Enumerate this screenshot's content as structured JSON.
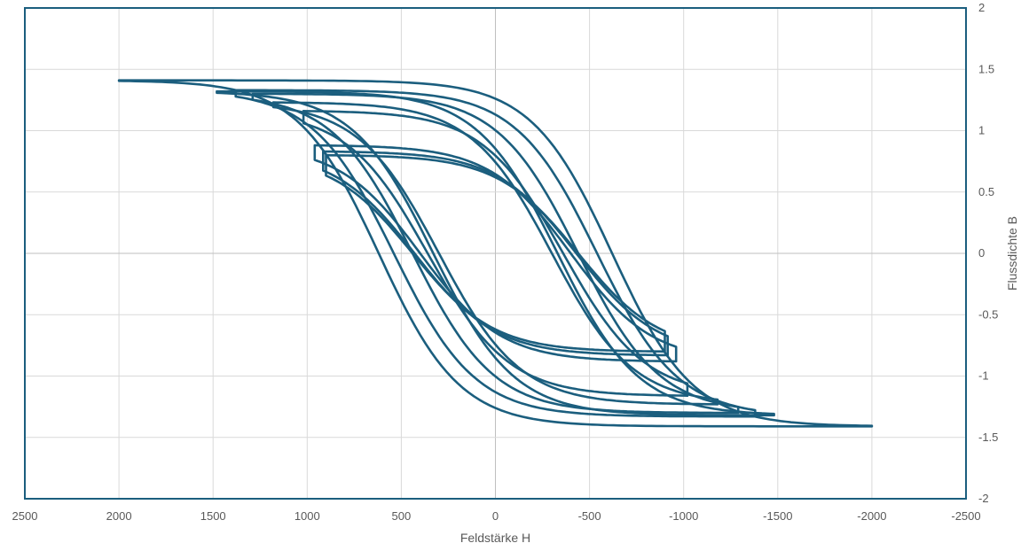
{
  "chart_data": {
    "type": "line",
    "title": "",
    "xlabel": "Feldstärke H",
    "ylabel": "Flussdichte B",
    "xlim": [
      2500,
      -2500
    ],
    "ylim": [
      -2,
      2
    ],
    "x_reversed": true,
    "y_axis_position": "right",
    "grid": true,
    "legend": "none",
    "x_ticks": [
      "2500",
      "2000",
      "1500",
      "1000",
      "500",
      "0",
      "-500",
      "-1000",
      "-1500",
      "-2000",
      "-2500"
    ],
    "y_ticks": [
      "-2",
      "-1.5",
      "-1",
      "-0.5",
      "0",
      "0.5",
      "1",
      "1.5",
      "2"
    ],
    "colors": {
      "series": "#1b5e7e",
      "frame": "#1b5e7e",
      "grid": "#d9d9d9",
      "text": "#595959"
    },
    "series": [
      {
        "Hmax": 2000,
        "Bmax": 1.41,
        "Hc": 620,
        "k": 1.0
      },
      {
        "Hmax": 1380,
        "Bmax": 1.33,
        "Hc": 540,
        "k": 1.0
      },
      {
        "Hmax": 1290,
        "Bmax": 1.3,
        "Hc": 440,
        "k": 1.0
      },
      {
        "Hmax": 1020,
        "Bmax": 1.16,
        "Hc": 360,
        "k": 1.0
      },
      {
        "Hmax": 1180,
        "Bmax": 1.23,
        "Hc": 300,
        "k": 1.0
      },
      {
        "Hmax": 1480,
        "Bmax": 1.32,
        "Hc": 330,
        "k": 1.0
      },
      {
        "Hmax": 915,
        "Bmax": 0.83,
        "Hc": 430,
        "k": 1.0
      },
      {
        "Hmax": 900,
        "Bmax": 0.8,
        "Hc": 440,
        "k": 1.0
      },
      {
        "Hmax": 960,
        "Bmax": 0.88,
        "Hc": 400,
        "k": 1.0
      }
    ]
  }
}
